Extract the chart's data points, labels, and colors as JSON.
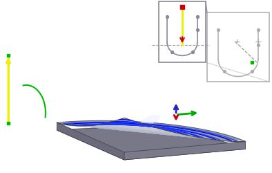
{
  "fig_width": 3.94,
  "fig_height": 2.5,
  "dpi": 100,
  "bg_color": "#ffffff",
  "blue1": "#0000ee",
  "blue2": "#2244ff",
  "dark_edge": "#444455",
  "ridge_color": "#555566",
  "yellow_color": "#eeee00",
  "green_color": "#00bb00",
  "blue_axis": "#2222cc",
  "green_axis": "#00aa00",
  "red_axis": "#cc0000",
  "gray_profile": "#888899",
  "lgray_profile": "#aaaaaa"
}
